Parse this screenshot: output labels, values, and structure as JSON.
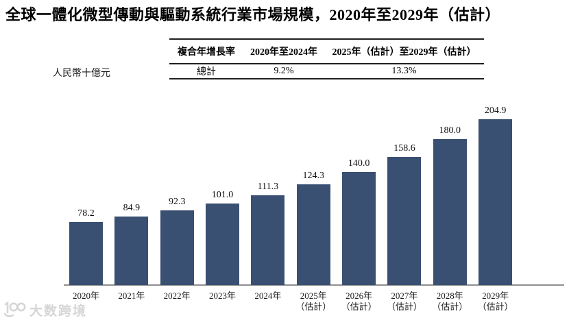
{
  "page_title": "全球一體化微型傳動與驅動系統行業市場規模，2020年至2029年（估計）",
  "unit_label": "人民幣十億元",
  "cagr_table": {
    "col1_header": "複合年增長率",
    "col2_header": "2020年至2024年",
    "col3_header": "2025年（估計）至2029年（估計）",
    "row_label": "總計",
    "col2_value": "9.2%",
    "col3_value": "13.3%"
  },
  "watermark": {
    "logo": "dashu-kuajing-logo",
    "text": "大数跨境"
  },
  "colors": {
    "bar": "#3A5072",
    "axis_line": "#8F8F8F",
    "table_rule": "#1F1F1F",
    "watermark": "#D6D6D6"
  },
  "chart_data": {
    "type": "bar",
    "title": "全球一體化微型傳動與驅動系統行業市場規模，2020年至2029年（估計）",
    "ylabel": "人民幣十億元",
    "categories": [
      "2020年",
      "2021年",
      "2022年",
      "2023年",
      "2024年",
      "2025年",
      "2026年",
      "2027年",
      "2028年",
      "2029年"
    ],
    "category_sublabels": [
      "",
      "",
      "",
      "",
      "",
      "（估計）",
      "（估計）",
      "（估計）",
      "（估計）",
      "（估計）"
    ],
    "values": [
      78.2,
      84.9,
      92.3,
      101.0,
      111.3,
      124.3,
      140.0,
      158.6,
      180.0,
      204.9
    ],
    "value_labels": [
      "78.2",
      "84.9",
      "92.3",
      "101.0",
      "111.3",
      "124.3",
      "140.0",
      "158.6",
      "180.0",
      "204.9"
    ],
    "ylim": [
      0,
      210
    ],
    "grid": false,
    "legend": false,
    "bar_color": "#3A5072",
    "cagr_2020_2024": "9.2%",
    "cagr_2025_2029": "13.3%"
  }
}
